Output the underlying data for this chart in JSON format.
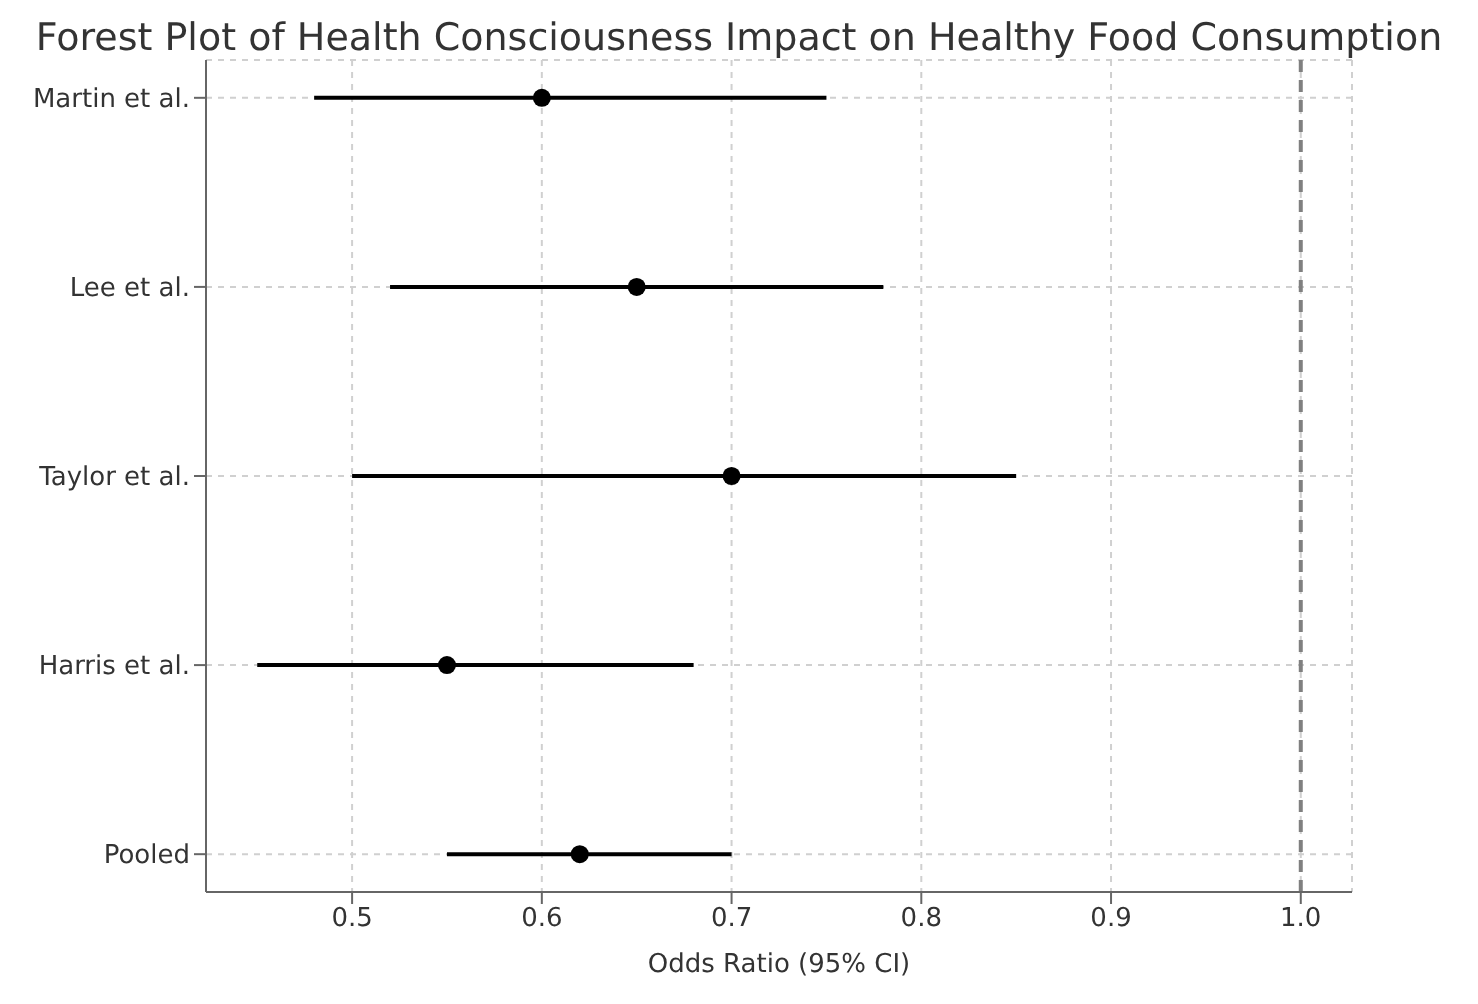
{
  "chart_data": {
    "type": "scatter",
    "title": "Forest Plot of Health Consciousness Impact on Healthy Food Consumption",
    "xlabel": "Odds Ratio (95% CI)",
    "orientation": "horizontal",
    "categories": [
      "Martin et al.",
      "Lee et al.",
      "Taylor et al.",
      "Harris et al.",
      "Pooled"
    ],
    "series": [
      {
        "color": "#000000",
        "values": [
          0.6,
          0.65,
          0.7,
          0.55,
          0.62
        ],
        "errors": [
          [
            0.48,
            0.75
          ],
          [
            0.52,
            0.78
          ],
          [
            0.5,
            0.85
          ],
          [
            0.45,
            0.68
          ],
          [
            0.55,
            0.7
          ]
        ]
      }
    ],
    "xlim": [
      0.423,
      1.027
    ],
    "xticks": [
      0.5,
      0.6,
      0.7,
      0.8,
      0.9,
      {
        "value": 1.0,
        "label": "1.0"
      }
    ],
    "ref_lines": [
      {
        "axis": "x",
        "value": 1.0,
        "color": "#808080",
        "line_style": "dashed"
      }
    ],
    "grid": true,
    "marker": "circle"
  }
}
